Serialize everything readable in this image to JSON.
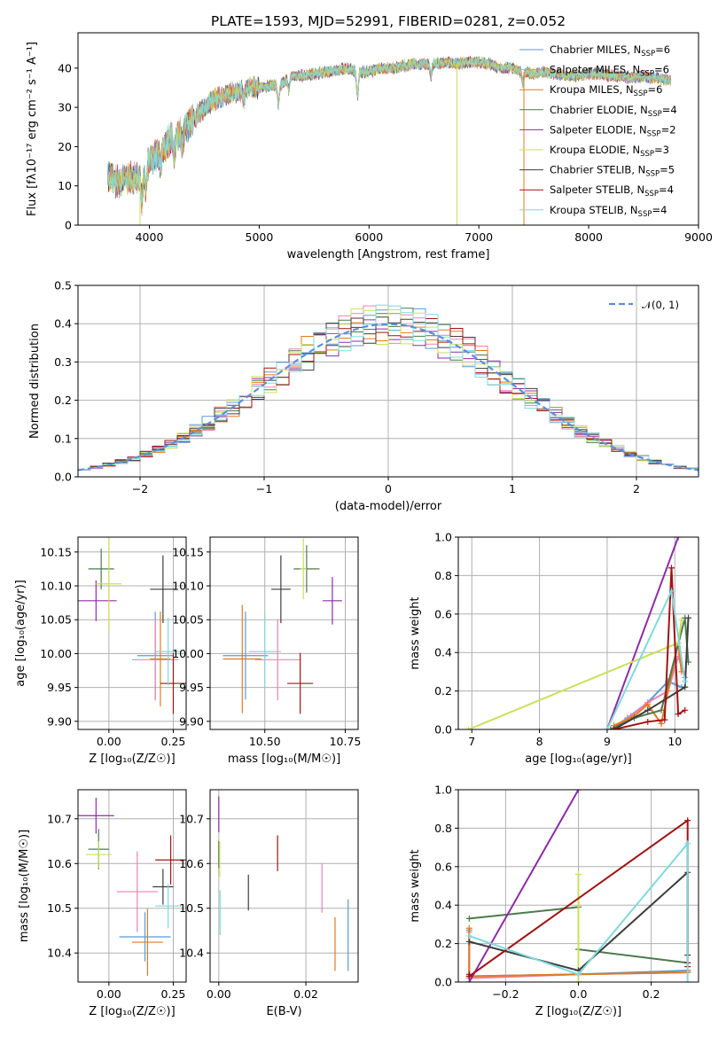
{
  "palette": {
    "chabrier_miles": "#5b9bd5",
    "salpeter_miles": "#ee82b0",
    "kroupa_miles": "#e07b20",
    "chabrier_elodie": "#4d7a4d",
    "salpeter_elodie": "#8e2ca6",
    "kroupa_elodie": "#c9e05a",
    "chabrier_stelib": "#3d3d3d",
    "salpeter_stelib": "#a01414",
    "kroupa_stelib": "#7fd9dc"
  },
  "chart_data": [
    {
      "id": "spectrum",
      "type": "line",
      "title": "PLATE=1593, MJD=52991, FIBERID=0281, z=0.052",
      "xlabel": "wavelength [Angstrom, rest frame]",
      "ylabel": "Flux [fλ10⁻¹⁷ erg cm⁻² s⁻¹ A⁻¹]",
      "xlim": [
        3350,
        9000
      ],
      "ylim": [
        0,
        49
      ],
      "xticks": [
        "4000",
        "5000",
        "6000",
        "7000",
        "8000",
        "9000"
      ],
      "xtick_values": [
        4000,
        5000,
        6000,
        7000,
        8000,
        9000
      ],
      "yticks": [
        "0",
        "10",
        "20",
        "30",
        "40"
      ],
      "ytick_values": [
        0,
        10,
        20,
        30,
        40
      ],
      "grid": false,
      "legend": "upper-right",
      "continuum_x": [
        3620,
        3700,
        3800,
        3900,
        3950,
        4000,
        4100,
        4200,
        4300,
        4400,
        4500,
        4600,
        4700,
        4800,
        4900,
        5000,
        5100,
        5200,
        5300,
        5400,
        5500,
        5600,
        5700,
        5800,
        5900,
        6000,
        6100,
        6200,
        6300,
        6400,
        6500,
        6600,
        6700,
        6800,
        6900,
        7000,
        7100,
        7200,
        7300,
        7400,
        7500,
        7600,
        7700,
        7800,
        7900,
        8000,
        8100,
        8200,
        8300,
        8400,
        8500,
        8600,
        8700,
        8750
      ],
      "continuum_y": [
        13,
        11,
        12,
        12,
        14,
        16,
        19,
        22,
        24,
        27,
        30,
        32,
        33,
        34,
        35,
        35,
        35.5,
        36,
        38,
        38,
        38.5,
        39,
        39.5,
        40,
        39,
        39,
        40,
        40,
        40.5,
        41,
        41,
        41,
        41.5,
        41,
        41.5,
        41.5,
        41,
        40,
        40,
        39,
        38.5,
        39,
        38.5,
        38,
        38,
        38.5,
        38.5,
        38,
        38,
        37.5,
        38,
        37.5,
        37,
        37
      ],
      "absorption_x": [
        3933,
        3968,
        4102,
        4227,
        4300,
        4861,
        5175,
        5270,
        5895,
        6563,
        7400
      ],
      "absorption_depth": [
        7,
        6,
        4,
        5,
        4,
        3,
        5,
        3,
        6,
        3,
        3
      ],
      "spikes_x": [
        3915,
        6800,
        7410
      ],
      "spikes_y": [
        0,
        0,
        0
      ],
      "series": [
        {
          "name": "Chabrier MILES, N",
          "nssp": "=6"
        },
        {
          "name": "Salpeter MILES, N",
          "nssp": "=6"
        },
        {
          "name": "Kroupa MILES, N",
          "nssp": "=6"
        },
        {
          "name": "Chabrier ELODIE, N",
          "nssp": "=4"
        },
        {
          "name": "Salpeter ELODIE, N",
          "nssp": "=2"
        },
        {
          "name": "Kroupa ELODIE, N",
          "nssp": "=3"
        },
        {
          "name": "Chabrier STELIB, N",
          "nssp": "=5"
        },
        {
          "name": "Salpeter STELIB, N",
          "nssp": "=4"
        },
        {
          "name": "Kroupa STELIB, N",
          "nssp": "=4"
        }
      ],
      "legend_sub": "SSP"
    },
    {
      "id": "residuals",
      "type": "bar",
      "xlabel": "(data-model)/error",
      "ylabel": "Normed distribution",
      "xlim": [
        -2.5,
        2.5
      ],
      "ylim": [
        0,
        0.5
      ],
      "xticks": [
        "−2",
        "−1",
        "0",
        "1",
        "2"
      ],
      "xtick_values": [
        -2,
        -1,
        0,
        1,
        2
      ],
      "yticks": [
        "0.0",
        "0.1",
        "0.2",
        "0.3",
        "0.4",
        "0.5"
      ],
      "ytick_values": [
        0,
        0.1,
        0.2,
        0.3,
        0.4,
        0.5
      ],
      "grid": true,
      "legend": "upper-right",
      "normal_label": "𝒩(0, 1)",
      "bin_width": 0.1,
      "bin_start": -2.5
    },
    {
      "id": "age-vs-Z",
      "type": "scatter",
      "xlabel": "Z [log₁₀(Z/Z☉)]",
      "ylabel": "age  [log₁₀(age/yr)]",
      "xlim": [
        -0.12,
        0.3
      ],
      "ylim": [
        9.888,
        10.172
      ],
      "xticks": [
        "0.00",
        "0.25"
      ],
      "xtick_values": [
        0,
        0.25
      ],
      "yticks": [
        "9.90",
        "9.95",
        "10.00",
        "10.05",
        "10.10",
        "10.15"
      ],
      "ytick_values": [
        9.9,
        9.95,
        10.0,
        10.05,
        10.1,
        10.15
      ],
      "grid": true,
      "points": [
        {
          "x": 0.18,
          "y": 9.997,
          "xerr": 0.07,
          "yerr": 0.065
        },
        {
          "x": 0.18,
          "y": 9.991,
          "xerr": 0.09,
          "yerr": 0.06
        },
        {
          "x": 0.2,
          "y": 9.992,
          "xerr": 0.04,
          "yerr": 0.07
        },
        {
          "x": -0.03,
          "y": 10.125,
          "xerr": 0.05,
          "yerr": 0.03
        },
        {
          "x": -0.05,
          "y": 10.078,
          "xerr": 0.08,
          "yerr": 0.03
        },
        {
          "x": 0.0,
          "y": 10.103,
          "xerr": 0.05,
          "yerr": 0.07
        },
        {
          "x": 0.21,
          "y": 10.095,
          "xerr": 0.05,
          "yerr": 0.05
        },
        {
          "x": 0.25,
          "y": 9.956,
          "xerr": 0.05,
          "yerr": 0.045
        },
        {
          "x": 0.23,
          "y": 10.003,
          "xerr": 0.05,
          "yerr": 0.05
        }
      ]
    },
    {
      "id": "age-vs-mass",
      "type": "scatter",
      "xlabel": "mass [log₁₀(M/M☉)]",
      "ylabel": "",
      "xlim": [
        10.33,
        10.79
      ],
      "ylim": [
        9.888,
        10.172
      ],
      "xticks": [
        "10.50",
        "10.75"
      ],
      "xtick_values": [
        10.5,
        10.75
      ],
      "yticks": [
        "9.90",
        "9.95",
        "10.00",
        "10.05",
        "10.10",
        "10.15"
      ],
      "ytick_values": [
        9.9,
        9.95,
        10.0,
        10.05,
        10.1,
        10.15
      ],
      "grid": true,
      "points": [
        {
          "x": 10.44,
          "y": 9.997,
          "xerr": 0.07,
          "yerr": 0.065
        },
        {
          "x": 10.54,
          "y": 9.991,
          "xerr": 0.07,
          "yerr": 0.06
        },
        {
          "x": 10.43,
          "y": 9.992,
          "xerr": 0.06,
          "yerr": 0.08
        },
        {
          "x": 10.63,
          "y": 10.125,
          "xerr": 0.04,
          "yerr": 0.035
        },
        {
          "x": 10.71,
          "y": 10.078,
          "xerr": 0.03,
          "yerr": 0.035
        },
        {
          "x": 10.62,
          "y": 10.125,
          "xerr": 0.01,
          "yerr": 0.045
        },
        {
          "x": 10.55,
          "y": 10.095,
          "xerr": 0.03,
          "yerr": 0.05
        },
        {
          "x": 10.61,
          "y": 9.956,
          "xerr": 0.04,
          "yerr": 0.045
        },
        {
          "x": 10.5,
          "y": 10.003,
          "xerr": 0.05,
          "yerr": 0.055
        }
      ]
    },
    {
      "id": "weight-vs-age",
      "type": "line",
      "xlabel": "age  [log₁₀(age/yr)]",
      "ylabel": "mass weight",
      "xlim": [
        6.8,
        10.35
      ],
      "ylim": [
        0,
        1
      ],
      "xticks": [
        "7",
        "8",
        "9",
        "10"
      ],
      "xtick_values": [
        7,
        8,
        9,
        10
      ],
      "yticks": [
        "0.0",
        "0.2",
        "0.4",
        "0.6",
        "0.8",
        "1.0"
      ],
      "ytick_values": [
        0,
        0.2,
        0.4,
        0.6,
        0.8,
        1.0
      ],
      "grid": true,
      "lines": [
        {
          "x": [
            9.05,
            9.3,
            9.6,
            9.9,
            10.1
          ],
          "y": [
            0.0,
            0.06,
            0.14,
            0.25,
            0.22
          ]
        },
        {
          "x": [
            9.05,
            9.35,
            9.6,
            9.9,
            10.05,
            10.15
          ],
          "y": [
            0.0,
            0.07,
            0.14,
            0.2,
            0.38,
            0.27
          ]
        },
        {
          "x": [
            9.1,
            9.4,
            9.6,
            9.8,
            10.05,
            10.1
          ],
          "y": [
            0.02,
            0.07,
            0.13,
            0.03,
            0.45,
            0.3
          ]
        },
        {
          "x": [
            9.05,
            9.4,
            9.8,
            10.15,
            10.2
          ],
          "y": [
            0.0,
            0.06,
            0.1,
            0.58,
            0.35
          ]
        },
        {
          "x": [
            9.0,
            10.05
          ],
          "y": [
            0.0,
            1.0
          ]
        },
        {
          "x": [
            6.95,
            10.05,
            10.1
          ],
          "y": [
            0.0,
            0.45,
            0.57
          ]
        },
        {
          "x": [
            9.1,
            9.6,
            10.15,
            10.2
          ],
          "y": [
            0.0,
            0.1,
            0.22,
            0.58
          ]
        },
        {
          "x": [
            9.1,
            9.6,
            9.85,
            9.95,
            10.05,
            10.15
          ],
          "y": [
            0.0,
            0.04,
            0.05,
            0.84,
            0.08,
            0.1
          ]
        },
        {
          "x": [
            9.0,
            9.95,
            10.15
          ],
          "y": [
            0.0,
            0.72,
            0.25
          ]
        }
      ]
    },
    {
      "id": "mass-vs-Z",
      "type": "scatter",
      "xlabel": "Z [log₁₀(Z/Z☉)]",
      "ylabel": "mass [log₁₀(M/M☉)]",
      "xlim": [
        -0.12,
        0.3
      ],
      "ylim": [
        10.335,
        10.765
      ],
      "xticks": [
        "0.00",
        "0.25"
      ],
      "xtick_values": [
        0,
        0.25
      ],
      "yticks": [
        "10.4",
        "10.5",
        "10.6",
        "10.7"
      ],
      "ytick_values": [
        10.4,
        10.5,
        10.6,
        10.7
      ],
      "grid": true,
      "points": [
        {
          "x": 0.14,
          "y": 10.436,
          "xerr": 0.1,
          "yerr": 0.055
        },
        {
          "x": 0.11,
          "y": 10.537,
          "xerr": 0.08,
          "yerr": 0.09
        },
        {
          "x": 0.15,
          "y": 10.424,
          "xerr": 0.06,
          "yerr": 0.075
        },
        {
          "x": -0.04,
          "y": 10.632,
          "xerr": 0.04,
          "yerr": 0.045
        },
        {
          "x": -0.05,
          "y": 10.707,
          "xerr": 0.07,
          "yerr": 0.04
        },
        {
          "x": -0.04,
          "y": 10.62,
          "xerr": 0.05,
          "yerr": 0.03
        },
        {
          "x": 0.21,
          "y": 10.548,
          "xerr": 0.04,
          "yerr": 0.04
        },
        {
          "x": 0.24,
          "y": 10.608,
          "xerr": 0.06,
          "yerr": 0.055
        },
        {
          "x": 0.23,
          "y": 10.505,
          "xerr": 0.05,
          "yerr": 0.05
        }
      ]
    },
    {
      "id": "mass-vs-ebv",
      "type": "scatter",
      "xlabel": "E(B-V)",
      "ylabel": "",
      "xlim": [
        -0.002,
        0.032
      ],
      "ylim": [
        10.335,
        10.765
      ],
      "xticks": [
        "0.00",
        "0.02"
      ],
      "xtick_values": [
        0,
        0.02
      ],
      "yticks": [
        "10.4",
        "10.5",
        "10.6",
        "10.7"
      ],
      "ytick_values": [
        10.4,
        10.5,
        10.6,
        10.7
      ],
      "grid": true,
      "points": [
        {
          "x": 0.0297,
          "y": 10.44,
          "yerr": 0.08
        },
        {
          "x": 0.0237,
          "y": 10.545,
          "yerr": 0.055
        },
        {
          "x": 0.0267,
          "y": 10.42,
          "yerr": 0.06
        },
        {
          "x": 0.0,
          "y": 10.62,
          "yerr": 0.03
        },
        {
          "x": 0.0,
          "y": 10.71,
          "yerr": 0.04
        },
        {
          "x": 0.0002,
          "y": 10.61,
          "yerr": 0.04
        },
        {
          "x": 0.0068,
          "y": 10.535,
          "yerr": 0.04
        },
        {
          "x": 0.0135,
          "y": 10.623,
          "yerr": 0.04
        },
        {
          "x": 0.0003,
          "y": 10.49,
          "yerr": 0.05
        }
      ]
    },
    {
      "id": "weight-vs-Z",
      "type": "line",
      "xlabel": "Z [log₁₀(Z/Z☉)]",
      "ylabel": "mass weight",
      "xlim": [
        -0.33,
        0.33
      ],
      "ylim": [
        0,
        1
      ],
      "xticks": [
        "−0.2",
        "0.0",
        "0.2"
      ],
      "xtick_values": [
        -0.2,
        0,
        0.2
      ],
      "yticks": [
        "0.0",
        "0.2",
        "0.4",
        "0.6",
        "0.8",
        "1.0"
      ],
      "ytick_values": [
        0,
        0.2,
        0.4,
        0.6,
        0.8,
        1.0
      ],
      "grid": true,
      "lines": [
        {
          "x": [
            -0.3,
            -0.3,
            0.0,
            0.3,
            0.3
          ],
          "y": [
            0.27,
            0.03,
            0.04,
            0.06,
            0.05
          ]
        },
        {
          "x": [
            -0.3,
            -0.3,
            0.0,
            0.3,
            0.3
          ],
          "y": [
            0.26,
            0.02,
            0.04,
            0.05,
            0.06
          ]
        },
        {
          "x": [
            -0.3,
            -0.3,
            0.0,
            0.3,
            0.3
          ],
          "y": [
            0.28,
            0.03,
            0.04,
            0.05,
            0.06
          ]
        },
        {
          "x": [
            -0.3,
            0.0,
            0.0,
            0.3
          ],
          "y": [
            0.33,
            0.39,
            0.17,
            0.1
          ]
        },
        {
          "x": [
            -0.3,
            0.0
          ],
          "y": [
            0.0,
            1.0
          ]
        },
        {
          "x": [
            0.0,
            0.0,
            0.0
          ],
          "y": [
            0.56,
            0.0,
            0.0
          ]
        },
        {
          "x": [
            -0.3,
            0.0,
            0.3,
            0.3
          ],
          "y": [
            0.21,
            0.06,
            0.57,
            0.14
          ]
        },
        {
          "x": [
            -0.3,
            -0.3,
            0.3,
            0.3,
            0.3
          ],
          "y": [
            0.04,
            0.03,
            0.84,
            0.1,
            0.08
          ]
        },
        {
          "x": [
            -0.3,
            0.0,
            0.3,
            0.3
          ],
          "y": [
            0.24,
            0.04,
            0.72,
            0.0
          ]
        }
      ]
    }
  ]
}
